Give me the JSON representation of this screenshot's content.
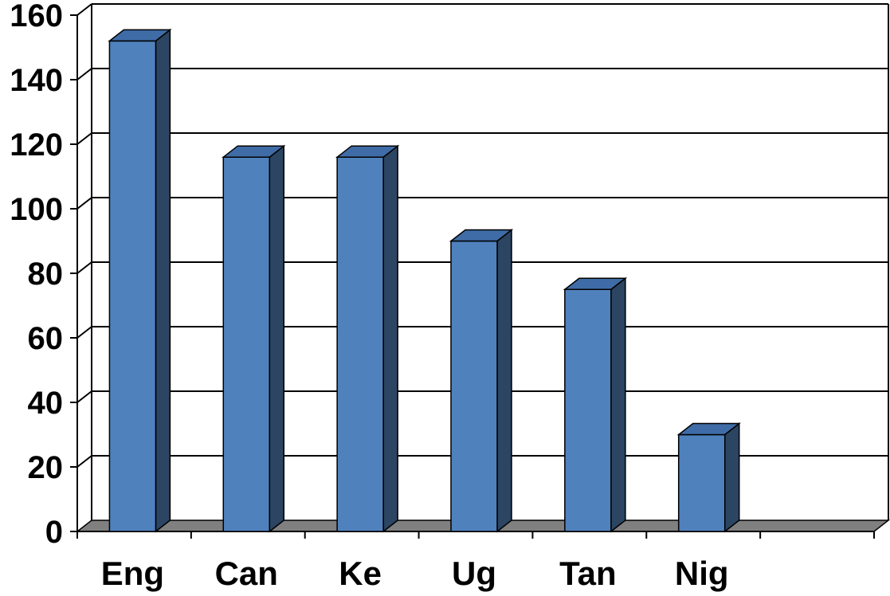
{
  "chart_data": {
    "type": "bar",
    "title": "",
    "xlabel": "",
    "ylabel": "",
    "categories": [
      "Eng",
      "Can",
      "Ke",
      "Ug",
      "Tan",
      "Nig"
    ],
    "values": [
      152,
      116,
      116,
      90,
      75,
      30
    ],
    "ylim": [
      0,
      160
    ],
    "yticks": [
      0,
      20,
      40,
      60,
      80,
      100,
      120,
      140,
      160
    ],
    "grid": true,
    "legend": "none",
    "style": "3d-column",
    "colors": {
      "bar_front": "#4F81BD",
      "bar_side": "#2B4562",
      "bar_top": "#3F6CA6",
      "floor": "#808080",
      "gridline": "#000000"
    }
  }
}
